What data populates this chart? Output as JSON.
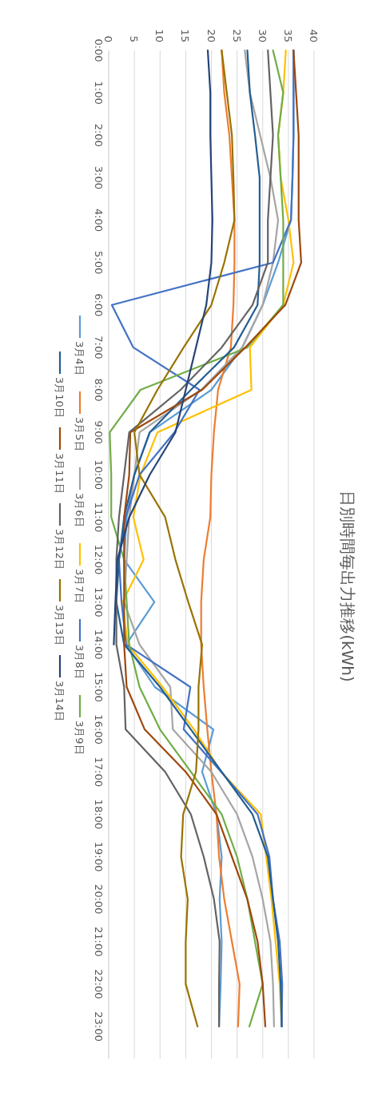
{
  "chart_data": {
    "type": "line",
    "title": "日別時間毎出力推移(kWh)",
    "categories": [
      "0:00",
      "1:00",
      "2:00",
      "3:00",
      "4:00",
      "5:00",
      "6:00",
      "7:00",
      "8:00",
      "9:00",
      "10:00",
      "11:00",
      "12:00",
      "13:00",
      "14:00",
      "15:00",
      "16:00",
      "17:00",
      "18:00",
      "19:00",
      "20:00",
      "21:00",
      "22:00",
      "23:00"
    ],
    "series": [
      {
        "name": "3月4日",
        "color": "#5b9bd5",
        "values": [
          36,
          36,
          36,
          35.8,
          35.5,
          33,
          30,
          26,
          20,
          8,
          5,
          3.5,
          3,
          8.9,
          3.4,
          9,
          20.4,
          18.2,
          21,
          22,
          21.6,
          22,
          21.8,
          21.5
        ]
      },
      {
        "name": "3月5日",
        "color": "#ed7d31",
        "values": [
          22,
          22.5,
          23.5,
          24,
          24.5,
          24.5,
          24.3,
          23.8,
          21.3,
          20.5,
          20,
          19.8,
          18.5,
          18,
          18,
          18.5,
          19.2,
          20,
          21,
          21.5,
          22.5,
          24,
          25.5,
          25.2
        ]
      },
      {
        "name": "3月6日",
        "color": "#a5a5a5",
        "values": [
          26.5,
          27.5,
          29.5,
          31.5,
          33,
          32,
          30,
          26,
          18,
          6,
          5,
          4,
          3.5,
          3,
          6,
          12,
          12.5,
          20,
          25,
          28,
          30,
          31.5,
          32,
          32.2
        ]
      },
      {
        "name": "3月7日",
        "color": "#ffc000",
        "values": [
          34.5,
          34,
          33,
          33.5,
          35,
          36,
          34,
          27.5,
          27.8,
          9.5,
          6.2,
          4.8,
          6.8,
          2.7,
          3.7,
          10.5,
          16.6,
          21.9,
          29.6,
          30.7,
          31.7,
          32.5,
          33.3,
          33.7
        ]
      },
      {
        "name": "3月8日",
        "color": "#4472c4",
        "values": [
          36,
          36,
          36,
          35.8,
          35.5,
          32,
          0.6,
          4.8,
          17.7,
          12.8,
          6,
          3.3,
          2,
          2.5,
          3.4,
          15.9,
          14.6,
          21.9,
          29,
          31.3,
          32,
          33.3,
          33.8,
          33.7
        ]
      },
      {
        "name": "3月9日",
        "color": "#70ad47",
        "values": [
          32,
          34,
          33,
          33.5,
          34,
          34,
          34,
          27,
          6.2,
          0.2,
          0.5,
          0.5,
          3,
          3.5,
          4,
          6,
          10,
          16,
          22,
          25,
          27,
          28.5,
          30,
          27.4
        ]
      },
      {
        "name": "3月10日",
        "color": "#255e91",
        "values": [
          27,
          27.5,
          28.5,
          29.4,
          29.4,
          29.4,
          29,
          24.4,
          16,
          8,
          5,
          3,
          2,
          1.5,
          3,
          10,
          16,
          22,
          28,
          31,
          32,
          33,
          33.5,
          33.7
        ]
      },
      {
        "name": "3月11日",
        "color": "#9e480e",
        "values": [
          36,
          36.5,
          37,
          37,
          37,
          37.5,
          34.4,
          26.6,
          18.2,
          4.2,
          4,
          3,
          3,
          3,
          3,
          3.5,
          7,
          15,
          21,
          24,
          27,
          29,
          30,
          30.5
        ]
      },
      {
        "name": "3月12日",
        "color": "#636363",
        "values": [
          31,
          31.5,
          32,
          31.5,
          31,
          31,
          28,
          22,
          14,
          4,
          3,
          2,
          1.5,
          1.5,
          1.5,
          3,
          3.3,
          11,
          16,
          18.5,
          20.5,
          21.6,
          21.5,
          21.5
        ]
      },
      {
        "name": "3月13日",
        "color": "#997300",
        "values": [
          22,
          23,
          24,
          24.3,
          24.5,
          22.5,
          20,
          14.6,
          9.5,
          5,
          6,
          11,
          13,
          15.5,
          18.2,
          17.5,
          17.5,
          17,
          14.5,
          14.1,
          15.4,
          15,
          15,
          17.3
        ]
      },
      {
        "name": "3月14日",
        "color": "#264478",
        "values": [
          19.3,
          19.8,
          19.8,
          20,
          20.2,
          20,
          19,
          17,
          15,
          13,
          8,
          4,
          1.7,
          1.3,
          1,
          null,
          null,
          null,
          null,
          null,
          null,
          null,
          null,
          null
        ]
      }
    ],
    "orientation": "horizontal",
    "xlim": [
      0,
      40
    ],
    "xticks": [
      0,
      5,
      10,
      15,
      20,
      25,
      30,
      35,
      40
    ],
    "grid": "x",
    "legend": "left"
  }
}
